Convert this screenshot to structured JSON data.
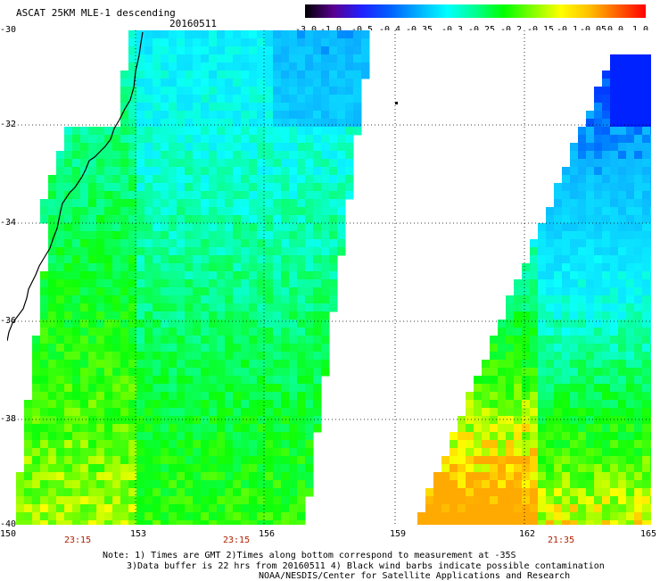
{
  "title": "ASCAT 25KM MLE-1 descending",
  "date": "20160511",
  "colorbar": {
    "tick_labels": [
      "-3.0",
      "-1.0",
      "-0.5",
      "-0.4",
      "-0.35",
      "-0.3",
      "-0.25",
      "-0.2",
      "-0.15",
      "-0.1",
      "-0.05",
      "0.0",
      "1.0"
    ],
    "colors": [
      "#000000",
      "#5a0090",
      "#2020ff",
      "#0060ff",
      "#00b0ff",
      "#00ffff",
      "#00ff90",
      "#00ff00",
      "#80ff00",
      "#ffff00",
      "#ffc000",
      "#ff6000",
      "#ff0000"
    ]
  },
  "map": {
    "lat_labels": [
      "-30",
      "-32",
      "-34",
      "-36",
      "-38",
      "-40"
    ],
    "lon_labels": [
      "150",
      "153",
      "156",
      "159",
      "162",
      "165"
    ],
    "time_labels": [
      "23:15",
      "23:15",
      "21:35"
    ],
    "lon_range": [
      150,
      165
    ],
    "lat_range": [
      -40,
      -30
    ]
  },
  "notes": [
    "Note: 1) Times are GMT 2)Times along bottom correspond to measurement at -35S",
    "3)Data buffer is 22 hrs from 20160511 4) Black wind barbs indicate possible contamination",
    "NOAA/NESDIS/Center for Satellite Applications and Research"
  ]
}
